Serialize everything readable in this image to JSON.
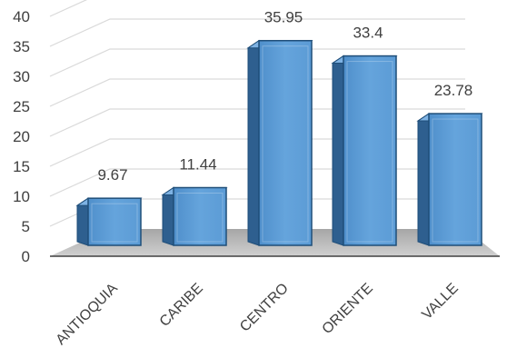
{
  "chart_data": {
    "type": "bar",
    "style": "3d-column",
    "categories": [
      "ANTIOQUIA",
      "CARIBE",
      "CENTRO",
      "ORIENTE",
      "VALLE"
    ],
    "values": [
      9.67,
      11.44,
      35.95,
      33.4,
      23.78
    ],
    "data_labels": [
      "9.67",
      "11.44",
      "35.95",
      "33.4",
      "23.78"
    ],
    "y_ticks": [
      "0",
      "5",
      "10",
      "15",
      "20",
      "25",
      "30",
      "35",
      "40"
    ],
    "ylim": [
      0,
      40
    ],
    "title": "",
    "xlabel": "",
    "ylabel": "",
    "grid": true,
    "legend": "none",
    "colors": {
      "bar_front": "#5b9bd5",
      "bar_side": "#2e5f8f",
      "bar_top": "#7eb2e3",
      "bar_edge": "#1f4e79",
      "grid": "#d9d9d9",
      "floor": "#bfbfbf"
    }
  }
}
